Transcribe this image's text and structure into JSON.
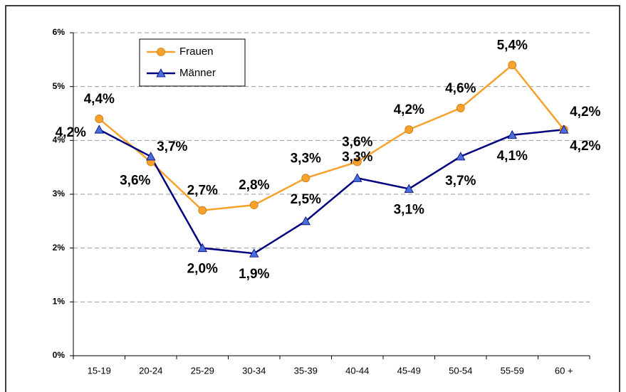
{
  "chart_data": {
    "type": "line",
    "categories": [
      "15-19",
      "20-24",
      "25-29",
      "30-34",
      "35-39",
      "40-44",
      "45-49",
      "50-54",
      "55-59",
      "60 +"
    ],
    "series": [
      {
        "name": "Frauen",
        "color": "#f8a12c",
        "marker_color": "#f8a12c",
        "marker": "circle",
        "values": [
          4.4,
          3.6,
          2.7,
          2.8,
          3.3,
          3.6,
          4.2,
          4.6,
          5.4,
          4.2
        ],
        "value_labels": [
          "4,4%",
          "3,6%",
          "2,7%",
          "2,8%",
          "3,3%",
          "3,6%",
          "4,2%",
          "4,6%",
          "5,4%",
          "4,2%"
        ]
      },
      {
        "name": "Männer",
        "color": "#000080",
        "marker_color": "#4a6fd8",
        "marker": "triangle",
        "values": [
          4.2,
          3.7,
          2.0,
          1.9,
          2.5,
          3.3,
          3.1,
          3.7,
          4.1,
          4.2
        ],
        "value_labels": [
          "4,2%",
          "3,7%",
          "2,0%",
          "1,9%",
          "2,5%",
          "3,3%",
          "3,1%",
          "3,7%",
          "4,1%",
          "4,2%"
        ]
      }
    ],
    "ylim": [
      0,
      6
    ],
    "yticks": [
      {
        "value": 0,
        "label": "0%"
      },
      {
        "value": 1,
        "label": "1%"
      },
      {
        "value": 2,
        "label": "2%"
      },
      {
        "value": 3,
        "label": "3%"
      },
      {
        "value": 4,
        "label": "4%"
      },
      {
        "value": 5,
        "label": "5%"
      },
      {
        "value": 6,
        "label": "6%"
      }
    ],
    "grid": true,
    "legend": "top-left"
  }
}
